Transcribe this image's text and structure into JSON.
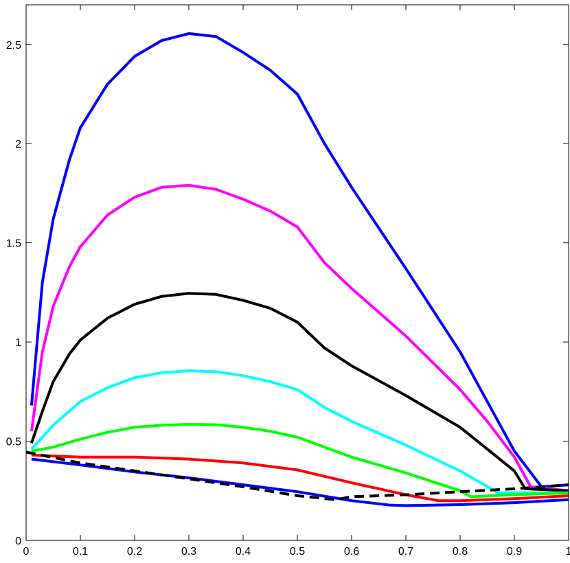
{
  "chart_data": {
    "type": "line",
    "title": "",
    "xlabel": "",
    "ylabel": "",
    "xlim": [
      0,
      1
    ],
    "ylim": [
      0,
      2.7
    ],
    "grid": false,
    "x_ticks": [
      0,
      0.1,
      0.2,
      0.3,
      0.4,
      0.5,
      0.6,
      0.7,
      0.8,
      0.9,
      1
    ],
    "x_tick_labels": [
      "0",
      "0.1",
      "0.2",
      "0.3",
      "0.4",
      "0.5",
      "0.6",
      "0.7",
      "0.8",
      "0.9",
      "1"
    ],
    "y_ticks": [
      0,
      0.5,
      1,
      1.5,
      2,
      2.5
    ],
    "y_tick_labels": [
      "0",
      "0.5",
      "1",
      "1.5",
      "2",
      "2.5"
    ],
    "series": [
      {
        "color": "#0000ff",
        "dash": "solid",
        "x": [
          0.01,
          0.03,
          0.05,
          0.08,
          0.1,
          0.15,
          0.2,
          0.25,
          0.3,
          0.35,
          0.4,
          0.45,
          0.5,
          0.55,
          0.6,
          0.7,
          0.8,
          0.85,
          0.9,
          0.95,
          1.0
        ],
        "y": [
          0.68,
          1.3,
          1.62,
          1.92,
          2.08,
          2.3,
          2.44,
          2.52,
          2.555,
          2.54,
          2.46,
          2.37,
          2.25,
          2.0,
          1.78,
          1.37,
          0.95,
          0.7,
          0.45,
          0.27,
          0.28
        ]
      },
      {
        "color": "#ff00ff",
        "dash": "solid",
        "x": [
          0.01,
          0.03,
          0.05,
          0.08,
          0.1,
          0.15,
          0.2,
          0.25,
          0.3,
          0.35,
          0.4,
          0.45,
          0.5,
          0.55,
          0.6,
          0.7,
          0.8,
          0.85,
          0.9,
          0.93,
          1.0
        ],
        "y": [
          0.55,
          0.95,
          1.18,
          1.38,
          1.48,
          1.64,
          1.73,
          1.78,
          1.79,
          1.77,
          1.72,
          1.66,
          1.58,
          1.4,
          1.27,
          1.03,
          0.76,
          0.6,
          0.42,
          0.27,
          0.25
        ]
      },
      {
        "color": "#000000",
        "dash": "solid",
        "x": [
          0.01,
          0.03,
          0.05,
          0.08,
          0.1,
          0.15,
          0.2,
          0.25,
          0.3,
          0.35,
          0.4,
          0.45,
          0.5,
          0.55,
          0.6,
          0.7,
          0.8,
          0.85,
          0.9,
          0.92,
          1.0
        ],
        "y": [
          0.49,
          0.65,
          0.8,
          0.94,
          1.01,
          1.12,
          1.19,
          1.23,
          1.245,
          1.24,
          1.21,
          1.17,
          1.1,
          0.97,
          0.88,
          0.73,
          0.57,
          0.46,
          0.35,
          0.26,
          0.25
        ]
      },
      {
        "color": "#00ffff",
        "dash": "solid",
        "x": [
          0.01,
          0.05,
          0.1,
          0.15,
          0.2,
          0.25,
          0.3,
          0.35,
          0.4,
          0.45,
          0.5,
          0.55,
          0.6,
          0.7,
          0.8,
          0.87,
          0.9,
          1.0
        ],
        "y": [
          0.46,
          0.58,
          0.7,
          0.77,
          0.82,
          0.845,
          0.855,
          0.85,
          0.83,
          0.8,
          0.76,
          0.67,
          0.6,
          0.48,
          0.35,
          0.24,
          0.24,
          0.24
        ]
      },
      {
        "color": "#00ff00",
        "dash": "solid",
        "x": [
          0.01,
          0.05,
          0.1,
          0.15,
          0.2,
          0.25,
          0.3,
          0.35,
          0.4,
          0.45,
          0.5,
          0.55,
          0.6,
          0.7,
          0.8,
          0.82,
          0.9,
          1.0
        ],
        "y": [
          0.45,
          0.47,
          0.51,
          0.545,
          0.57,
          0.58,
          0.585,
          0.583,
          0.57,
          0.55,
          0.52,
          0.47,
          0.42,
          0.34,
          0.25,
          0.22,
          0.23,
          0.24
        ]
      },
      {
        "color": "#ff0000",
        "dash": "solid",
        "x": [
          0.01,
          0.05,
          0.1,
          0.2,
          0.3,
          0.4,
          0.5,
          0.6,
          0.7,
          0.76,
          0.8,
          0.9,
          1.0
        ],
        "y": [
          0.43,
          0.425,
          0.42,
          0.42,
          0.41,
          0.39,
          0.355,
          0.29,
          0.23,
          0.2,
          0.2,
          0.21,
          0.225
        ]
      },
      {
        "color": "#0000ff",
        "dash": "solid",
        "x": [
          0.01,
          0.1,
          0.2,
          0.3,
          0.4,
          0.5,
          0.6,
          0.67,
          0.7,
          0.8,
          0.9,
          1.0
        ],
        "y": [
          0.41,
          0.38,
          0.345,
          0.315,
          0.28,
          0.245,
          0.2,
          0.178,
          0.175,
          0.18,
          0.19,
          0.205
        ]
      },
      {
        "color": "#000000",
        "dash": "dashed",
        "x": [
          0.0,
          0.1,
          0.2,
          0.3,
          0.4,
          0.5,
          0.57,
          0.6,
          0.7,
          0.8,
          0.9,
          1.0
        ],
        "y": [
          0.445,
          0.39,
          0.35,
          0.31,
          0.27,
          0.225,
          0.205,
          0.22,
          0.23,
          0.245,
          0.26,
          0.28
        ]
      }
    ]
  }
}
